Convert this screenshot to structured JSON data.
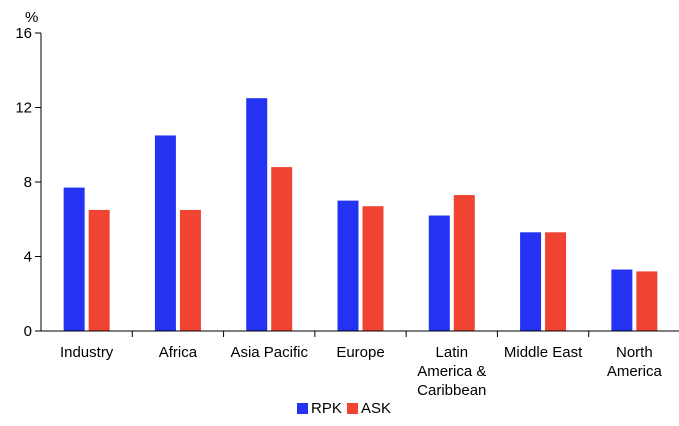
{
  "chart_data": {
    "type": "bar",
    "title": "",
    "xlabel": "",
    "ylabel": "%",
    "ylim": [
      0,
      16
    ],
    "yticks": [
      0,
      4,
      8,
      12,
      16
    ],
    "categories": [
      [
        "Industry"
      ],
      [
        "Africa"
      ],
      [
        "Asia Pacific"
      ],
      [
        "Europe"
      ],
      [
        "Latin",
        "America &",
        "Caribbean"
      ],
      [
        "Middle East"
      ],
      [
        "North",
        "America"
      ]
    ],
    "series": [
      {
        "name": "RPK",
        "color": "#2433f2",
        "values": [
          7.7,
          10.5,
          12.5,
          7.0,
          6.2,
          5.3,
          3.3
        ]
      },
      {
        "name": "ASK",
        "color": "#f04332",
        "values": [
          6.5,
          6.5,
          8.8,
          6.7,
          7.3,
          5.3,
          3.2
        ]
      }
    ],
    "legend_position": "bottom-center",
    "grid": false
  }
}
